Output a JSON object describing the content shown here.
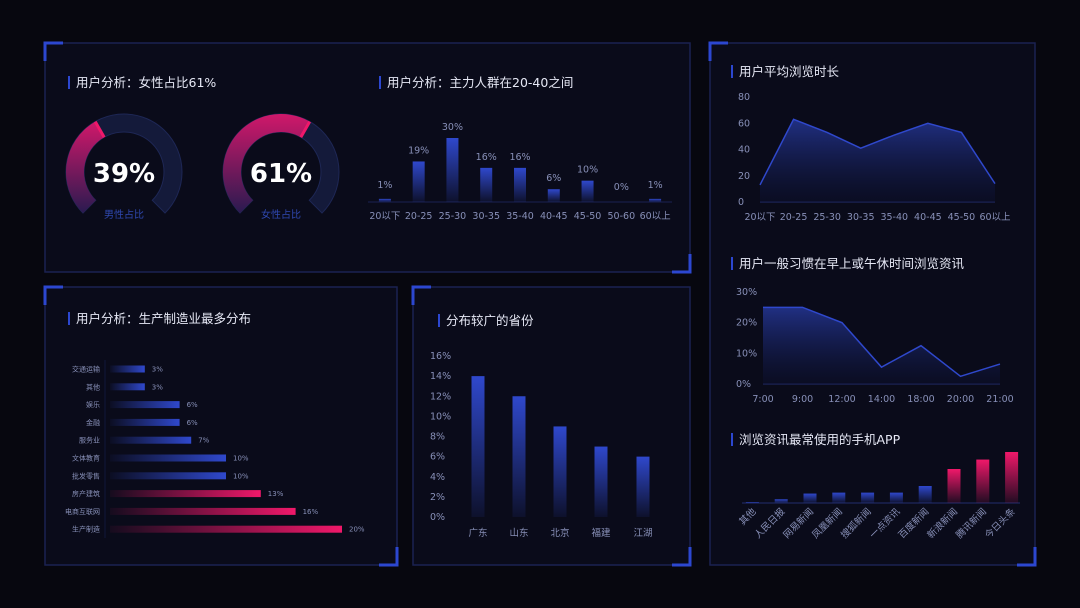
{
  "colors": {
    "background": "#07070f",
    "panel_border": "#1b2252",
    "corner": "#2c47d0",
    "blue": "#2d44c0",
    "pink": "#f0186a",
    "track": "#141a3a"
  },
  "chart_data": [
    {
      "type": "gauge",
      "title": "用户分析：女性占比61%",
      "gauges": [
        {
          "value": 39,
          "display": "39%",
          "label": "男性占比"
        },
        {
          "value": 61,
          "display": "61%",
          "label": "女性占比"
        }
      ]
    },
    {
      "type": "bar",
      "title": "用户分析：主力人群在20-40之间",
      "categories": [
        "20以下",
        "20-25",
        "25-30",
        "30-35",
        "35-40",
        "40-45",
        "45-50",
        "50-60",
        "60以上"
      ],
      "values": [
        1,
        19,
        30,
        16,
        16,
        6,
        10,
        0,
        1
      ],
      "data_labels": [
        "1%",
        "19%",
        "30%",
        "16%",
        "16%",
        "6%",
        "10%",
        "0%",
        "1%"
      ]
    },
    {
      "type": "area",
      "title": "用户平均浏览时长",
      "categories": [
        "20以下",
        "20-25",
        "25-30",
        "30-35",
        "35-40",
        "40-45",
        "45-50",
        "60以上"
      ],
      "values": [
        13,
        63,
        53,
        41,
        51,
        60,
        53,
        14
      ],
      "yticks": [
        "0",
        "20",
        "40",
        "60",
        "80"
      ],
      "ylim": [
        0,
        80
      ]
    },
    {
      "type": "area",
      "title": "用户一般习惯在早上或午休时间浏览资讯",
      "categories": [
        "7:00",
        "9:00",
        "12:00",
        "14:00",
        "18:00",
        "20:00",
        "21:00"
      ],
      "values": [
        25,
        25,
        20,
        5.5,
        12.5,
        2.5,
        6.5
      ],
      "yticks": [
        "0%",
        "10%",
        "20%",
        "30%"
      ],
      "ylim": [
        0,
        30
      ]
    },
    {
      "type": "bar",
      "title": "浏览资讯最常使用的手机APP",
      "categories": [
        "其他",
        "人民日报",
        "网易新闻",
        "凤凰新闻",
        "搜狐新闻",
        "一点资讯",
        "百度新闻",
        "新浪新闻",
        "腾讯新闻",
        "今日头条"
      ],
      "values": [
        0.5,
        2,
        5,
        5.5,
        5.5,
        5.5,
        9,
        18,
        23,
        27
      ],
      "highlight": [
        false,
        false,
        false,
        false,
        false,
        false,
        false,
        true,
        true,
        true
      ]
    },
    {
      "type": "bar",
      "orientation": "horizontal",
      "title": "用户分析：生产制造业最多分布",
      "categories": [
        "交通运输",
        "其他",
        "娱乐",
        "金融",
        "服务业",
        "文体教育",
        "批发零售",
        "房产建筑",
        "电商互联网",
        "生产制造"
      ],
      "values": [
        3,
        3,
        6,
        6,
        7,
        10,
        10,
        13,
        16,
        20
      ],
      "data_labels": [
        "3%",
        "3%",
        "6%",
        "6%",
        "7%",
        "10%",
        "10%",
        "13%",
        "16%",
        "20%"
      ],
      "highlight": [
        false,
        false,
        false,
        false,
        false,
        false,
        false,
        true,
        true,
        true
      ]
    },
    {
      "type": "bar",
      "title": "分布较广的省份",
      "categories": [
        "广东",
        "山东",
        "北京",
        "福建",
        "江湖"
      ],
      "values": [
        14,
        12,
        9,
        7,
        6
      ],
      "yticks": [
        "0%",
        "2%",
        "4%",
        "6%",
        "8%",
        "10%",
        "12%",
        "14%",
        "16%"
      ],
      "ylim": [
        0,
        16
      ]
    }
  ]
}
